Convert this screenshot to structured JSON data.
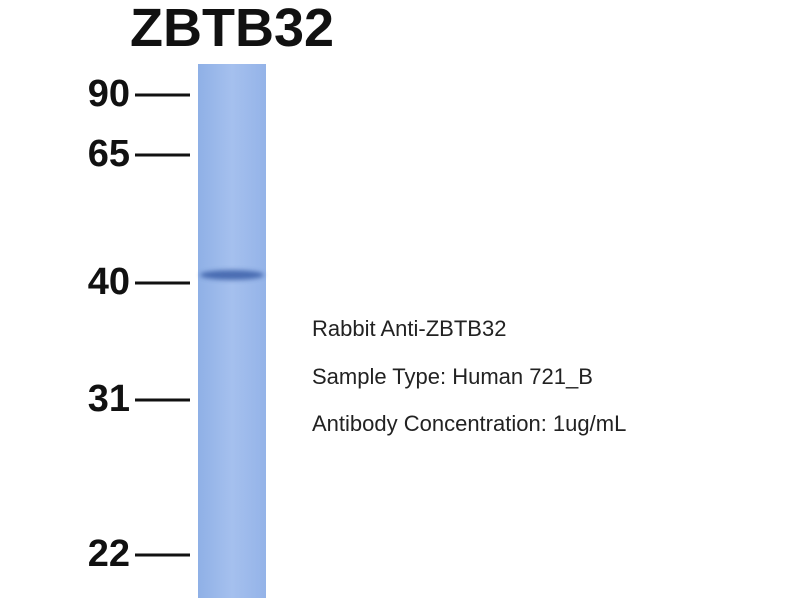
{
  "title": "ZBTB32",
  "markers": [
    "90",
    "65",
    "40",
    "31",
    "22"
  ],
  "notes": [
    "Rabbit Anti-ZBTB32",
    "Sample Type: Human 721_B",
    "Antibody Concentration: 1ug/mL"
  ]
}
